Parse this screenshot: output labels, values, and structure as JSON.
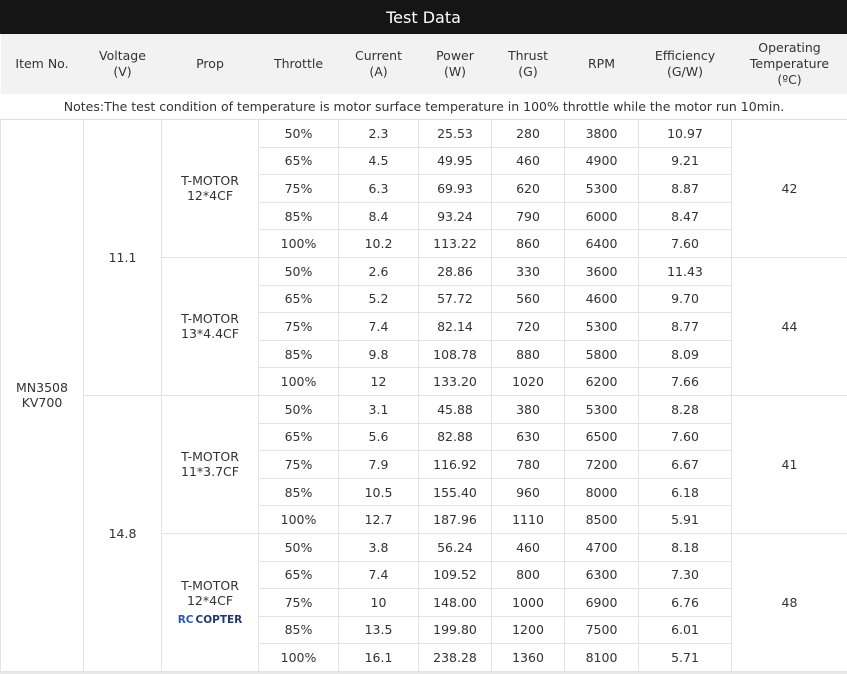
{
  "title": "Test Data",
  "headers": {
    "item": "Item No.",
    "voltage": [
      "Voltage",
      "(V)"
    ],
    "prop": "Prop",
    "throttle": "Throttle",
    "current": [
      "Current",
      "(A)"
    ],
    "power": [
      "Power",
      "(W)"
    ],
    "thrust": [
      "Thrust",
      "(G)"
    ],
    "rpm": "RPM",
    "efficiency": [
      "Efficiency",
      "(G/W)"
    ],
    "temp": [
      "Operating",
      "Temperature",
      "(ºC)"
    ]
  },
  "notes": "Notes:The test condition of temperature is motor surface temperature in 100% throttle while the motor run 10min.",
  "item": [
    "MN3508",
    "KV700"
  ],
  "watermark": {
    "rc": "RC",
    "copter": "COPTER"
  },
  "voltage_groups": [
    {
      "voltage": "11.1",
      "props": [
        {
          "name": [
            "T-MOTOR",
            "12*4CF"
          ],
          "temp": "42",
          "rows": [
            [
              "50%",
              "2.3",
              "25.53",
              "280",
              "3800",
              "10.97"
            ],
            [
              "65%",
              "4.5",
              "49.95",
              "460",
              "4900",
              "9.21"
            ],
            [
              "75%",
              "6.3",
              "69.93",
              "620",
              "5300",
              "8.87"
            ],
            [
              "85%",
              "8.4",
              "93.24",
              "790",
              "6000",
              "8.47"
            ],
            [
              "100%",
              "10.2",
              "113.22",
              "860",
              "6400",
              "7.60"
            ]
          ]
        },
        {
          "name": [
            "T-MOTOR",
            "13*4.4CF"
          ],
          "temp": "44",
          "rows": [
            [
              "50%",
              "2.6",
              "28.86",
              "330",
              "3600",
              "11.43"
            ],
            [
              "65%",
              "5.2",
              "57.72",
              "560",
              "4600",
              "9.70"
            ],
            [
              "75%",
              "7.4",
              "82.14",
              "720",
              "5300",
              "8.77"
            ],
            [
              "85%",
              "9.8",
              "108.78",
              "880",
              "5800",
              "8.09"
            ],
            [
              "100%",
              "12",
              "133.20",
              "1020",
              "6200",
              "7.66"
            ]
          ]
        }
      ]
    },
    {
      "voltage": "14.8",
      "props": [
        {
          "name": [
            "T-MOTOR",
            "11*3.7CF"
          ],
          "temp": "41",
          "rows": [
            [
              "50%",
              "3.1",
              "45.88",
              "380",
              "5300",
              "8.28"
            ],
            [
              "65%",
              "5.6",
              "82.88",
              "630",
              "6500",
              "7.60"
            ],
            [
              "75%",
              "7.9",
              "116.92",
              "780",
              "7200",
              "6.67"
            ],
            [
              "85%",
              "10.5",
              "155.40",
              "960",
              "8000",
              "6.18"
            ],
            [
              "100%",
              "12.7",
              "187.96",
              "1110",
              "8500",
              "5.91"
            ]
          ]
        },
        {
          "name": [
            "T-MOTOR",
            "12*4CF"
          ],
          "temp": "48",
          "watermark": true,
          "rows": [
            [
              "50%",
              "3.8",
              "56.24",
              "460",
              "4700",
              "8.18"
            ],
            [
              "65%",
              "7.4",
              "109.52",
              "800",
              "6300",
              "7.30"
            ],
            [
              "75%",
              "10",
              "148.00",
              "1000",
              "6900",
              "6.76"
            ],
            [
              "85%",
              "13.5",
              "199.80",
              "1200",
              "7500",
              "6.01"
            ],
            [
              "100%",
              "16.1",
              "238.28",
              "1360",
              "8100",
              "5.71"
            ]
          ]
        }
      ]
    }
  ]
}
